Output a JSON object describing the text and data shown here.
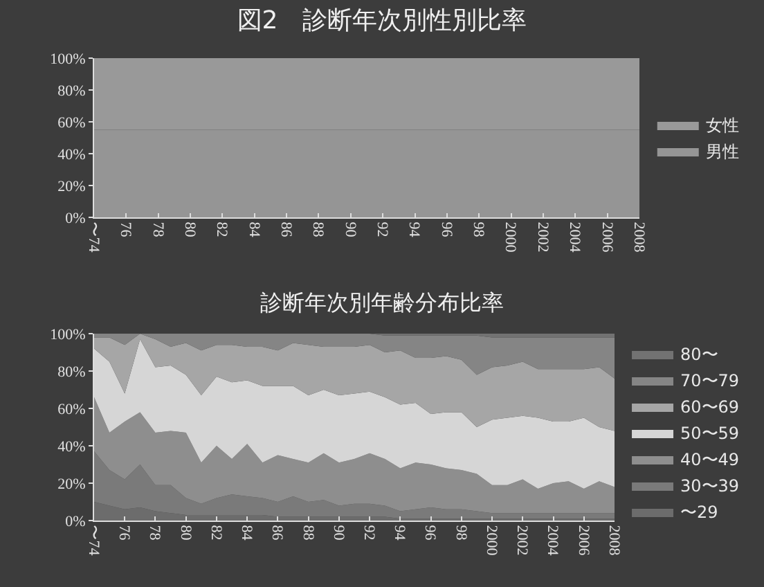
{
  "chart_data": [
    {
      "type": "area",
      "title": "図2　診断年次別性別比率",
      "stacked": true,
      "legend": "right",
      "categories": [
        "〜74",
        null,
        "76",
        null,
        "78",
        null,
        "80",
        null,
        "82",
        null,
        "84",
        null,
        "86",
        null,
        "88",
        null,
        "90",
        null,
        "92",
        null,
        "94",
        null,
        "96",
        null,
        "98",
        null,
        "2000",
        null,
        "2002",
        null,
        "2004",
        null,
        "2006",
        null,
        "2008"
      ],
      "ylim": [
        0,
        100
      ],
      "yticks": [
        {
          "value": 0,
          "label": "0%"
        },
        {
          "value": 20,
          "label": "20%"
        },
        {
          "value": 40,
          "label": "40%"
        },
        {
          "value": 60,
          "label": "60%"
        },
        {
          "value": 80,
          "label": "80%"
        },
        {
          "value": 100,
          "label": "100%"
        }
      ],
      "series": [
        {
          "name": "男性",
          "color": "#959595",
          "values": [
            55,
            55,
            55,
            55,
            55,
            55,
            55,
            55,
            55,
            55,
            55,
            55,
            55,
            55,
            55,
            55,
            55,
            55,
            55,
            55,
            55,
            55,
            55,
            55,
            55,
            55,
            55,
            55,
            55,
            55,
            55,
            55,
            55,
            55,
            55
          ]
        },
        {
          "name": "女性",
          "color": "#999999",
          "values": [
            45,
            45,
            45,
            45,
            45,
            45,
            45,
            45,
            45,
            45,
            45,
            45,
            45,
            45,
            45,
            45,
            45,
            45,
            45,
            45,
            45,
            45,
            45,
            45,
            45,
            45,
            45,
            45,
            45,
            45,
            45,
            45,
            45,
            45,
            45
          ]
        }
      ]
    },
    {
      "type": "area",
      "title": "診断年次別年齢分布比率",
      "stacked": true,
      "legend": "right",
      "categories": [
        "〜74",
        null,
        "76",
        null,
        "78",
        null,
        "80",
        null,
        "82",
        null,
        "84",
        null,
        "86",
        null,
        "88",
        null,
        "90",
        null,
        "92",
        null,
        "94",
        null,
        "96",
        null,
        "98",
        null,
        "2000",
        null,
        "2002",
        null,
        "2004",
        null,
        "2006",
        null,
        "2008"
      ],
      "ylim": [
        0,
        100
      ],
      "yticks": [
        {
          "value": 0,
          "label": "0%"
        },
        {
          "value": 20,
          "label": "20%"
        },
        {
          "value": 40,
          "label": "40%"
        },
        {
          "value": 60,
          "label": "60%"
        },
        {
          "value": 80,
          "label": "80%"
        },
        {
          "value": 100,
          "label": "100%"
        }
      ],
      "series": [
        {
          "name": "〜29",
          "color": "#6c6c6c",
          "values": [
            10,
            8,
            6,
            7,
            5,
            4,
            3,
            3,
            3,
            3,
            3,
            3,
            2,
            2,
            2,
            2,
            2,
            2,
            2,
            2,
            1,
            1,
            1,
            1,
            1,
            1,
            1,
            1,
            1,
            1,
            1,
            1,
            1,
            1,
            1
          ]
        },
        {
          "name": "30〜39",
          "color": "#7a7a7a",
          "values": [
            27,
            19,
            16,
            23,
            14,
            15,
            9,
            6,
            9,
            11,
            10,
            9,
            8,
            11,
            8,
            9,
            6,
            7,
            7,
            6,
            4,
            5,
            6,
            5,
            5,
            4,
            3,
            3,
            3,
            3,
            3,
            3,
            3,
            3,
            3
          ]
        },
        {
          "name": "40〜49",
          "color": "#8e8e8e",
          "values": [
            29,
            20,
            31,
            28,
            28,
            29,
            35,
            22,
            28,
            19,
            28,
            19,
            25,
            20,
            21,
            25,
            23,
            24,
            27,
            25,
            23,
            25,
            23,
            22,
            21,
            20,
            15,
            15,
            18,
            13,
            16,
            17,
            13,
            17,
            14
          ]
        },
        {
          "name": "50〜59",
          "color": "#d6d6d6",
          "values": [
            26,
            38,
            15,
            39,
            35,
            35,
            31,
            36,
            37,
            41,
            34,
            41,
            37,
            39,
            36,
            34,
            36,
            35,
            33,
            33,
            34,
            32,
            27,
            30,
            31,
            25,
            35,
            36,
            34,
            38,
            33,
            32,
            38,
            29,
            30
          ]
        },
        {
          "name": "60〜69",
          "color": "#a6a6a6",
          "values": [
            6,
            13,
            26,
            3,
            15,
            10,
            17,
            24,
            17,
            20,
            18,
            21,
            19,
            23,
            27,
            23,
            26,
            25,
            25,
            24,
            29,
            24,
            30,
            30,
            28,
            28,
            28,
            28,
            29,
            26,
            28,
            28,
            26,
            32,
            28
          ]
        },
        {
          "name": "70〜79",
          "color": "#858585",
          "values": [
            2,
            2,
            6,
            0,
            3,
            7,
            5,
            9,
            6,
            6,
            7,
            7,
            9,
            5,
            6,
            7,
            7,
            7,
            6,
            9,
            8,
            12,
            12,
            11,
            13,
            21,
            16,
            15,
            13,
            17,
            17,
            17,
            17,
            16,
            22
          ]
        },
        {
          "name": "80〜",
          "color": "#727272",
          "values": [
            0,
            0,
            0,
            0,
            0,
            0,
            0,
            0,
            0,
            0,
            0,
            0,
            0,
            0,
            0,
            0,
            0,
            0,
            0,
            1,
            1,
            1,
            1,
            1,
            1,
            1,
            2,
            2,
            2,
            2,
            2,
            2,
            2,
            2,
            2
          ]
        }
      ]
    }
  ]
}
